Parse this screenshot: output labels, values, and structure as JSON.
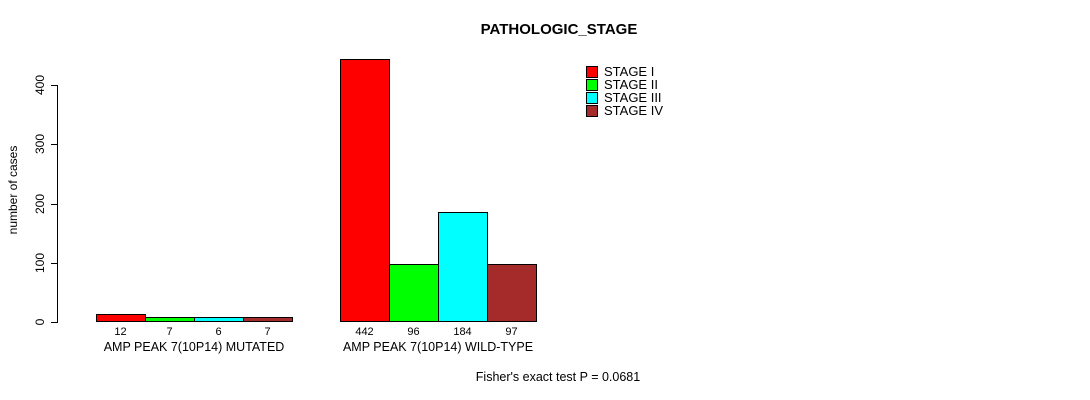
{
  "chart_data": {
    "type": "bar",
    "title": "PATHOLOGIC_STAGE",
    "xlabel": "",
    "ylabel": "number of cases",
    "ylim": [
      0,
      400
    ],
    "yticks": [
      0,
      100,
      200,
      300,
      400
    ],
    "grid": false,
    "legend_position": "top-right inside plot",
    "categories": [
      "AMP PEAK 7(10P14) MUTATED",
      "AMP PEAK 7(10P14) WILD-TYPE"
    ],
    "series": [
      {
        "name": "STAGE I",
        "color": "#ff0000",
        "values": [
          12,
          442
        ]
      },
      {
        "name": "STAGE II",
        "color": "#00ff00",
        "values": [
          7,
          96
        ]
      },
      {
        "name": "STAGE III",
        "color": "#00ffff",
        "values": [
          6,
          184
        ]
      },
      {
        "name": "STAGE IV",
        "color": "#a52a2a",
        "values": [
          7,
          97
        ]
      }
    ],
    "bar_value_labels_shown": true,
    "bar_border_color": "#000000",
    "background_color": "#ffffff",
    "text_color": "#000000",
    "annotation": "Fisher's exact test P = 0.0681"
  }
}
